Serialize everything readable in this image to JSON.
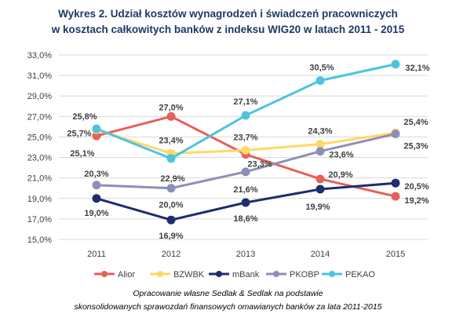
{
  "chart_data": {
    "type": "line",
    "title_line1": "Wykres 2. Udział kosztów wynagrodzeń i świadczeń pracowniczych",
    "title_line2": "w kosztach całkowitych banków z indeksu WIG20 w latach 2011 - 2015",
    "categories": [
      "2011",
      "2012",
      "2013",
      "2014",
      "2015"
    ],
    "ylim": [
      15,
      33
    ],
    "yticks": [
      "15,0%",
      "17,0%",
      "19,0%",
      "21,0%",
      "23,0%",
      "25,0%",
      "27,0%",
      "29,0%",
      "31,0%",
      "33,0%"
    ],
    "grid": true,
    "legend": "bottom",
    "series": [
      {
        "name": "Alior",
        "color": "#e8605a",
        "values": [
          25.1,
          27.0,
          23.3,
          20.9,
          19.2
        ],
        "labels": [
          "25,1%",
          "27,0%",
          "23,3%",
          "20,9%",
          "19,2%"
        ]
      },
      {
        "name": "BZWBK",
        "color": "#ffd966",
        "values": [
          25.7,
          23.4,
          23.7,
          24.3,
          25.4
        ],
        "labels": [
          "25,7%",
          "23,4%",
          "23,7%",
          "24,3%",
          "25,4%"
        ]
      },
      {
        "name": "mBank",
        "color": "#1f2d6e",
        "values": [
          19.0,
          16.9,
          18.6,
          19.9,
          20.5
        ],
        "labels": [
          "19,0%",
          "16,9%",
          "18,6%",
          "19,9%",
          "20,5%"
        ]
      },
      {
        "name": "PKOBP",
        "color": "#8e8fb7",
        "values": [
          20.3,
          20.0,
          21.6,
          23.6,
          25.3
        ],
        "labels": [
          "20,3%",
          "20,0%",
          "21,6%",
          "23,6%",
          "25,3%"
        ]
      },
      {
        "name": "PEKAO",
        "color": "#4ec3e0",
        "values": [
          25.8,
          22.9,
          27.1,
          30.5,
          32.1
        ],
        "labels": [
          "25,8%",
          "22,9%",
          "27,1%",
          "30,5%",
          "32,1%"
        ]
      }
    ],
    "source_line1": "Opracowanie własne Sedlak & Sedlak na podstawie",
    "source_line2": "skonsolidowanych sprawozdań finansowych omawianych banków za lata 2011-2015"
  }
}
